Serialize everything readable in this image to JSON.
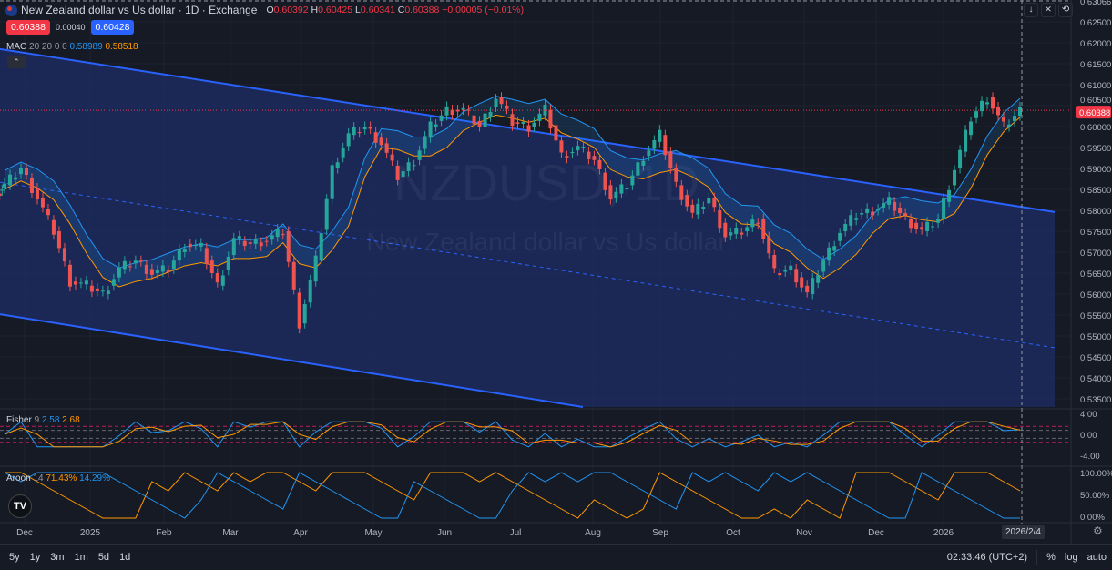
{
  "header": {
    "title": "New Zealand dollar vs Us dollar · 1D · Exchange",
    "o_label": "O",
    "o": "0.60392",
    "h_label": "H",
    "h": "0.60425",
    "l_label": "L",
    "l": "0.60341",
    "c_label": "C",
    "c": "0.60388",
    "change": "−0.00005 (−0.01%)"
  },
  "quote": {
    "sell": "0.60388",
    "spread": "0.00040",
    "buy": "0.60428"
  },
  "mac": {
    "name": "MAC",
    "params": "20 20 0 0",
    "upper": "0.58989",
    "lower": "0.58518"
  },
  "fisher": {
    "name": "Fisher",
    "params": "9",
    "v1": "2.58",
    "v2": "2.68"
  },
  "aroon": {
    "name": "Aroon",
    "params": "14",
    "up": "71.43%",
    "down": "14.29%"
  },
  "tools": [
    "down-arrow-icon",
    "collapse-icon",
    "refresh-icon"
  ],
  "timeframes": [
    "5y",
    "1y",
    "3m",
    "1m",
    "5d",
    "1d"
  ],
  "clock": "02:33:46 (UTC+2)",
  "scale_buttons": {
    "percent": "%",
    "log": "log",
    "auto": "auto"
  },
  "crosshair_date": "2026/2/4",
  "watermark": {
    "symbol": "NZDUSD, 1D",
    "name": "New Zealand dollar vs Us dollar"
  },
  "colors": {
    "up": "#26a69a",
    "down": "#ef5350",
    "channel": "#2962ff",
    "ma_upper": "#2196f3",
    "ma_lower": "#ff9800",
    "bg": "#161a25"
  },
  "chart_data": {
    "type": "candlestick",
    "ylim": [
      0.535,
      0.625
    ],
    "y_ticks": [
      "0.62500",
      "0.62000",
      "0.61500",
      "0.61000",
      "0.60500",
      "0.60000",
      "0.59500",
      "0.59000",
      "0.58500",
      "0.58000",
      "0.57500",
      "0.57000",
      "0.56500",
      "0.56000",
      "0.55500",
      "0.55000",
      "0.54500",
      "0.54000",
      "0.53500"
    ],
    "top_price": "0.63066",
    "last_price": "0.60388",
    "x_ticks": [
      "Dec",
      "2025",
      "Feb",
      "Mar",
      "Apr",
      "May",
      "Jun",
      "Jul",
      "Aug",
      "Sep",
      "Oct",
      "Nov",
      "Dec",
      "2026"
    ],
    "closes": [
      0.586,
      0.59,
      0.583,
      0.575,
      0.563,
      0.562,
      0.56,
      0.566,
      0.568,
      0.565,
      0.566,
      0.572,
      0.571,
      0.562,
      0.573,
      0.572,
      0.573,
      0.575,
      0.553,
      0.568,
      0.59,
      0.598,
      0.6,
      0.596,
      0.588,
      0.592,
      0.6,
      0.604,
      0.604,
      0.6,
      0.607,
      0.601,
      0.6,
      0.604,
      0.593,
      0.595,
      0.592,
      0.583,
      0.586,
      0.593,
      0.598,
      0.586,
      0.579,
      0.583,
      0.574,
      0.575,
      0.578,
      0.565,
      0.566,
      0.56,
      0.568,
      0.575,
      0.579,
      0.58,
      0.582,
      0.578,
      0.575,
      0.578,
      0.59,
      0.602,
      0.607,
      0.6,
      0.60388
    ],
    "channel": {
      "upper_start": 0.6172,
      "upper_end": 0.5796,
      "mid_start": 0.5867,
      "mid_end": 0.5472,
      "lower_start": 0.5552
    },
    "fisher_axis": [
      "4.00",
      "0.00",
      "-4.00"
    ],
    "aroon_axis": [
      "100.00%",
      "50.00%",
      "0.00%"
    ]
  }
}
